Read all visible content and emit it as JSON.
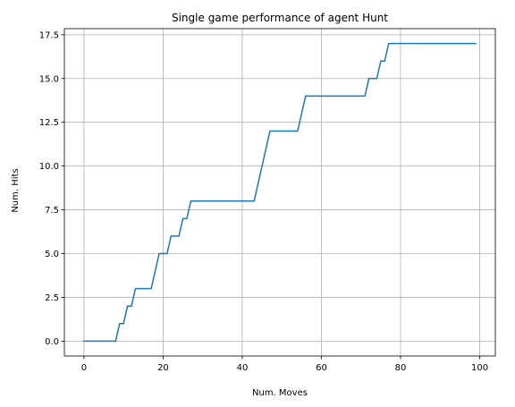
{
  "chart_data": {
    "type": "line",
    "title": "Single game performance of agent Hunt",
    "xlabel": "Num. Moves",
    "ylabel": "Num. Hits",
    "xlim": [
      -4.95,
      103.95
    ],
    "ylim": [
      -0.85,
      17.85
    ],
    "x_ticks": [
      0,
      20,
      40,
      60,
      80,
      100
    ],
    "x_tick_labels": [
      "0",
      "20",
      "40",
      "60",
      "80",
      "100"
    ],
    "y_ticks": [
      0,
      2.5,
      5,
      7.5,
      10,
      12.5,
      15,
      17.5
    ],
    "y_tick_labels": [
      "0.0",
      "2.5",
      "5.0",
      "7.5",
      "10.0",
      "12.5",
      "15.0",
      "17.5"
    ],
    "grid": true,
    "series": [
      {
        "color": "#1f77b4",
        "x": [
          0,
          1,
          2,
          3,
          4,
          5,
          6,
          7,
          8,
          9,
          10,
          11,
          12,
          13,
          14,
          15,
          16,
          17,
          18,
          19,
          20,
          21,
          22,
          23,
          24,
          25,
          26,
          27,
          28,
          29,
          30,
          31,
          32,
          33,
          34,
          35,
          36,
          37,
          38,
          39,
          40,
          41,
          42,
          43,
          44,
          45,
          46,
          47,
          48,
          49,
          50,
          51,
          52,
          53,
          54,
          55,
          56,
          57,
          58,
          59,
          60,
          61,
          62,
          63,
          64,
          65,
          66,
          67,
          68,
          69,
          70,
          71,
          72,
          73,
          74,
          75,
          76,
          77,
          78,
          79,
          80,
          81,
          82,
          83,
          84,
          85,
          86,
          87,
          88,
          89,
          90,
          91,
          92,
          93,
          94,
          95,
          96,
          97,
          98,
          99
        ],
        "y": [
          0,
          0,
          0,
          0,
          0,
          0,
          0,
          0,
          0,
          1,
          1,
          2,
          2,
          3,
          3,
          3,
          3,
          3,
          4,
          5,
          5,
          5,
          6,
          6,
          6,
          7,
          7,
          8,
          8,
          8,
          8,
          8,
          8,
          8,
          8,
          8,
          8,
          8,
          8,
          8,
          8,
          8,
          8,
          8,
          9,
          10,
          11,
          12,
          12,
          12,
          12,
          12,
          12,
          12,
          12,
          13,
          14,
          14,
          14,
          14,
          14,
          14,
          14,
          14,
          14,
          14,
          14,
          14,
          14,
          14,
          14,
          14,
          15,
          15,
          15,
          16,
          16,
          17,
          17,
          17,
          17,
          17,
          17,
          17,
          17,
          17,
          17,
          17,
          17,
          17,
          17,
          17,
          17,
          17,
          17,
          17,
          17,
          17,
          17,
          17
        ]
      }
    ]
  }
}
